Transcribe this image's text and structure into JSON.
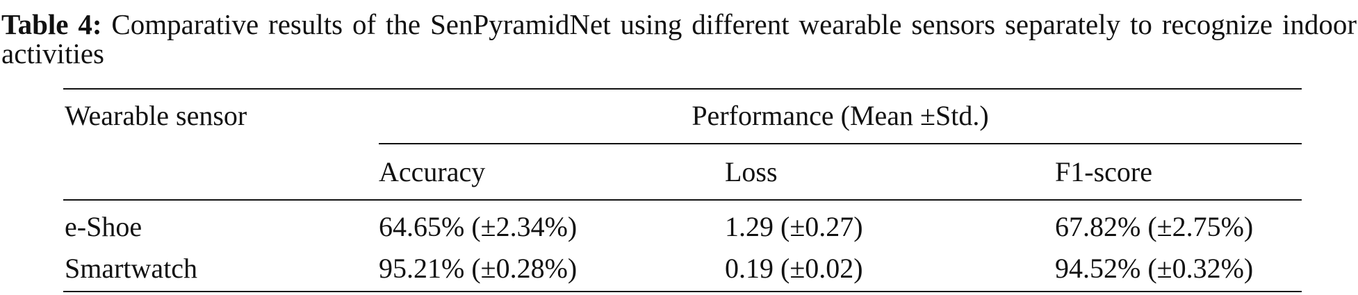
{
  "caption": {
    "label": "Table 4:",
    "text": "Comparative results of the SenPyramidNet using different wearable sensors separately to recognize indoor activities"
  },
  "table": {
    "header": [
      "Wearable sensor",
      "Performance (Mean ±Std.)"
    ],
    "subheader": [
      "Accuracy",
      "Loss",
      "F1-score"
    ],
    "rows": [
      [
        "e-Shoe",
        "64.65% (±2.34%)",
        "1.29 (±0.27)",
        "67.82% (±2.75%)"
      ],
      [
        "Smartwatch",
        "95.21% (±0.28%)",
        "0.19 (±0.02)",
        "94.52% (±0.32%)"
      ]
    ]
  }
}
